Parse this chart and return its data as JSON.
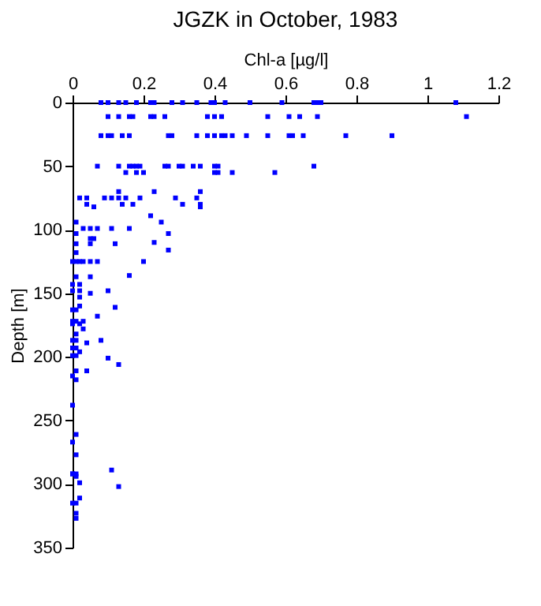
{
  "chart_data": {
    "type": "scatter",
    "title": "JGZK in October, 1983",
    "xlabel": "Chl-a [µg/l]",
    "ylabel": "Depth [m]",
    "x": [
      0.08,
      0.1,
      0.13,
      0.15,
      0.18,
      0.22,
      0.23,
      0.28,
      0.31,
      0.35,
      0.39,
      0.4,
      0.43,
      0.5,
      0.59,
      0.68,
      0.69,
      0.7,
      1.08,
      0.1,
      0.13,
      0.16,
      0.17,
      0.22,
      0.23,
      0.26,
      0.38,
      0.4,
      0.42,
      0.55,
      0.61,
      0.64,
      0.69,
      1.11,
      0.08,
      0.1,
      0.11,
      0.14,
      0.16,
      0.27,
      0.28,
      0.35,
      0.38,
      0.4,
      0.42,
      0.43,
      0.45,
      0.49,
      0.55,
      0.61,
      0.62,
      0.65,
      0.77,
      0.9,
      0.07,
      0.13,
      0.16,
      0.17,
      0.18,
      0.19,
      0.26,
      0.27,
      0.3,
      0.31,
      0.34,
      0.36,
      0.4,
      0.41,
      0.68,
      0.15,
      0.18,
      0.2,
      0.4,
      0.41,
      0.45,
      0.57,
      0.13,
      0.23,
      0.36,
      0.02,
      0.04,
      0.09,
      0.11,
      0.13,
      0.15,
      0.19,
      0.29,
      0.35,
      0.04,
      0.14,
      0.17,
      0.31,
      0.36,
      0.06,
      0.36,
      0.22,
      0.01,
      0.25,
      0.03,
      0.05,
      0.07,
      0.11,
      0.16,
      0.01,
      0.27,
      0.05,
      0.06,
      0.23,
      0.01,
      0.05,
      0.12,
      0.27,
      0.01,
      0,
      0.01,
      0.02,
      0.03,
      0.05,
      0.07,
      0.2,
      0.16,
      0.01,
      0.05,
      0,
      0.02,
      0,
      0.02,
      0.1,
      0.05,
      0.02,
      0.02,
      0.12,
      0,
      0.01,
      0.07,
      0,
      0.01,
      0.03,
      0,
      0.02,
      0.03,
      0.01,
      0,
      0.01,
      0.08,
      0.04,
      0,
      0.01,
      0.02,
      0,
      0.01,
      0.1,
      0.13,
      0.01,
      0.04,
      0,
      0.01,
      0,
      0.01,
      0,
      0.01,
      0.11,
      0,
      0,
      0.01,
      0.01,
      0.02,
      0.13,
      0.02,
      0,
      0.01,
      0.01,
      0.01
    ],
    "values": [
      0,
      0,
      0,
      0,
      0,
      0,
      0,
      0,
      0,
      0,
      0,
      0,
      0,
      0,
      0,
      0,
      0,
      0,
      0,
      11,
      11,
      11,
      11,
      11,
      11,
      11,
      11,
      11,
      11,
      11,
      11,
      11,
      11,
      11,
      26,
      26,
      26,
      26,
      26,
      26,
      26,
      26,
      26,
      26,
      26,
      26,
      26,
      26,
      26,
      26,
      26,
      26,
      26,
      26,
      50,
      50,
      50,
      50,
      50,
      50,
      50,
      50,
      50,
      50,
      50,
      50,
      50,
      50,
      50,
      55,
      55,
      55,
      55,
      55,
      55,
      55,
      70,
      70,
      70,
      75,
      75,
      75,
      75,
      75,
      75,
      75,
      75,
      75,
      80,
      80,
      80,
      80,
      80,
      82,
      82,
      89,
      94,
      94,
      99,
      99,
      99,
      99,
      99,
      103,
      103,
      107,
      107,
      110,
      111,
      111,
      111,
      116,
      118,
      125,
      125,
      125,
      125,
      125,
      125,
      125,
      136,
      137,
      137,
      143,
      143,
      148,
      148,
      148,
      150,
      153,
      160,
      161,
      163,
      163,
      168,
      172,
      172,
      172,
      174,
      174,
      178,
      182,
      187,
      187,
      187,
      189,
      193,
      193,
      196,
      199,
      199,
      201,
      206,
      211,
      211,
      215,
      218,
      238,
      261,
      267,
      277,
      289,
      292,
      292,
      292,
      294,
      299,
      302,
      311,
      315,
      315,
      323,
      327
    ],
    "color": "#0000ff",
    "marker": "square",
    "xlim": [
      0,
      1.2
    ],
    "xticks": [
      0,
      0.2,
      0.4,
      0.6,
      0.8,
      1,
      1.2
    ],
    "ylim": [
      350,
      0
    ],
    "yticks": [
      0,
      50,
      100,
      150,
      200,
      250,
      300,
      350
    ],
    "grid": false
  }
}
